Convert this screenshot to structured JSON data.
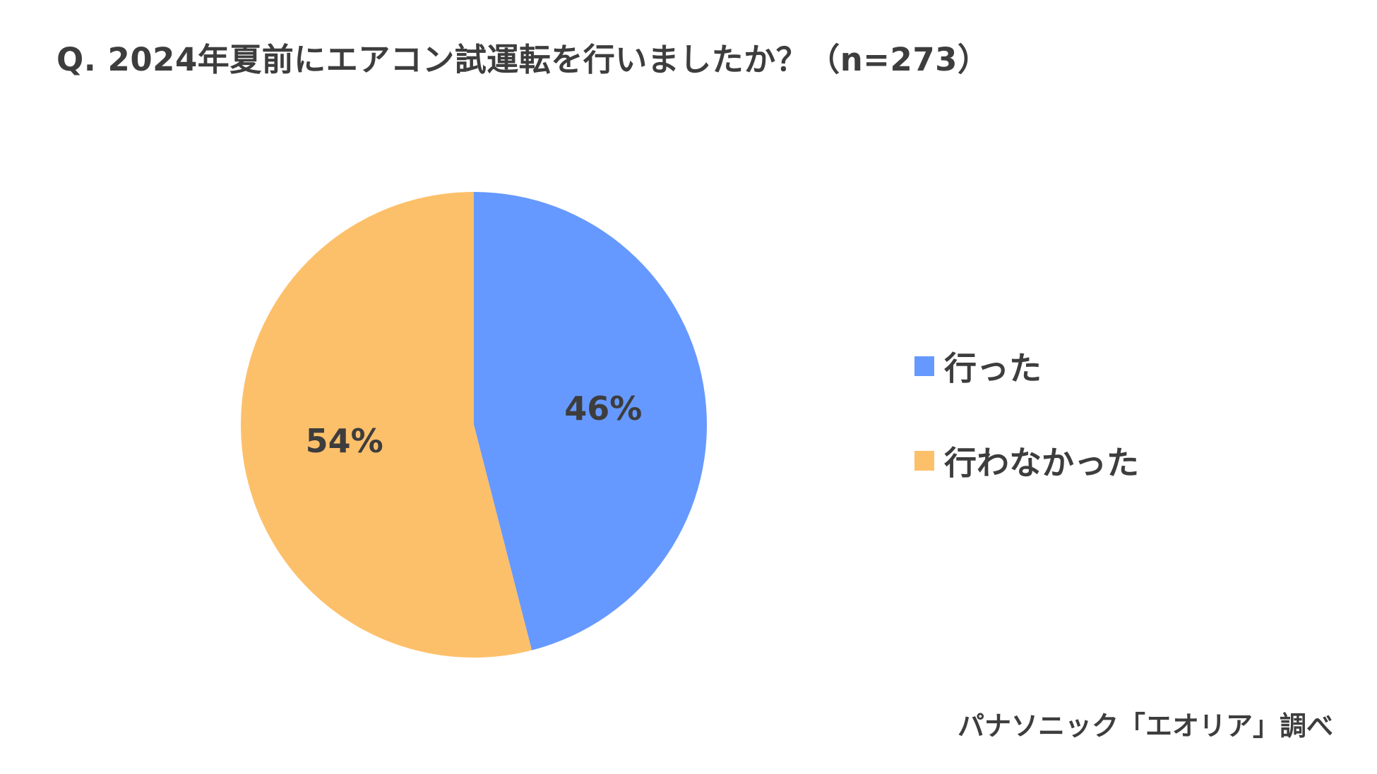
{
  "title": "Q. 2024年夏前にエアコン試運転を行いましたか？（n=273）",
  "source": "パナソニック「エオリア」調べ",
  "chart_data": {
    "type": "pie",
    "title": "Q. 2024年夏前にエアコン試運転を行いましたか？（n=273）",
    "start_angle_deg": 0,
    "direction": "clockwise",
    "legend_position": "right",
    "slices": [
      {
        "label": "行った",
        "value": 46,
        "display": "46%",
        "color": "#6699ff"
      },
      {
        "label": "行わなかった",
        "value": 54,
        "display": "54%",
        "color": "#fdc06a"
      }
    ]
  }
}
